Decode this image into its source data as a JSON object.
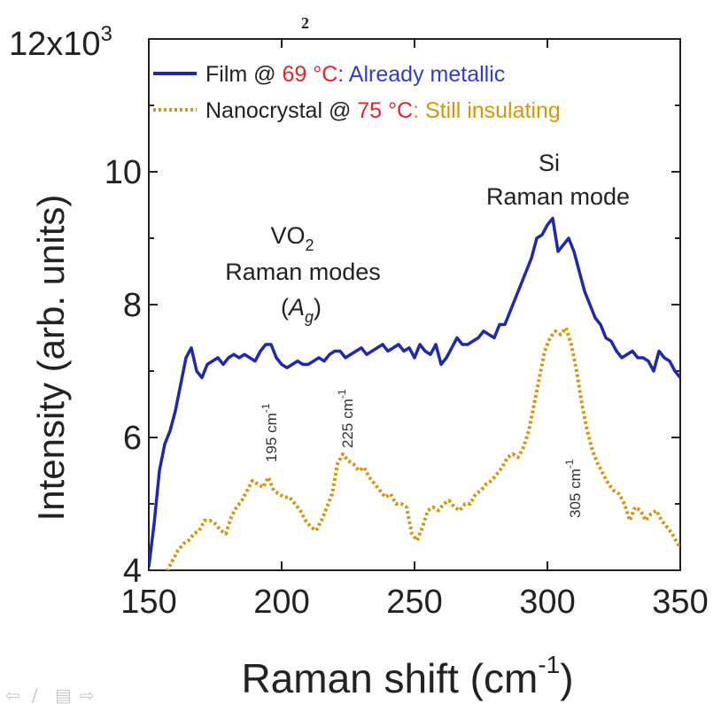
{
  "chart_data": {
    "type": "line",
    "title_fragment": "₂",
    "xlabel": "Raman shift (cm",
    "xlabel_sup": "-1",
    "xlabel_close": ")",
    "ylabel": "Intensity (arb. units)",
    "xlim": [
      150,
      350
    ],
    "ylim": [
      4,
      12
    ],
    "y_multiplier": "12x10",
    "y_multiplier_sup": "3",
    "xticks": [
      "150",
      "200",
      "250",
      "300",
      "350"
    ],
    "yticks": [
      "4",
      "6",
      "8",
      "10"
    ],
    "legend": {
      "placement": "top-left",
      "entries": [
        {
          "prefix": "Film @ ",
          "temp": "69 °C",
          "suffix": ": Already metallic",
          "line_color": "#1f2aa8",
          "temp_color": "#e8242b",
          "suffix_color": "#2f3fc8",
          "style": "solid"
        },
        {
          "prefix": "Nanocrystal @ ",
          "temp": "75 °C",
          "suffix": ": Still insulating",
          "line_color": "#d4960e",
          "temp_color": "#e8242b",
          "suffix_color": "#d4960e",
          "style": "dotted"
        }
      ]
    },
    "annotations": {
      "vo2_line1": "VO",
      "vo2_sub": "2",
      "vo2_line2": "Raman modes",
      "vo2_ag_open": "(",
      "vo2_ag_a": "A",
      "vo2_ag_sub": "g",
      "vo2_ag_close": ")",
      "si_line1": "Si",
      "si_line2": "Raman mode",
      "peak1": "195 cm",
      "peak1_sup": "-1",
      "peak2": "225 cm",
      "peak2_sup": "-1",
      "peak3": "305 cm",
      "peak3_sup": "-1"
    },
    "series": [
      {
        "color": "#1f2aa8",
        "style": "solid",
        "x": [
          150,
          152,
          154,
          156,
          158,
          160,
          162,
          164,
          166,
          168,
          170,
          172,
          174,
          176,
          178,
          180,
          182,
          184,
          186,
          188,
          190,
          192,
          194,
          196,
          198,
          200,
          202,
          204,
          206,
          208,
          210,
          212,
          214,
          216,
          218,
          220,
          222,
          224,
          226,
          228,
          230,
          232,
          234,
          236,
          238,
          240,
          242,
          244,
          246,
          248,
          250,
          252,
          254,
          256,
          258,
          260,
          262,
          264,
          266,
          268,
          270,
          272,
          274,
          276,
          278,
          280,
          282,
          284,
          286,
          288,
          290,
          292,
          294,
          296,
          298,
          300,
          302,
          304,
          306,
          308,
          310,
          312,
          314,
          316,
          318,
          320,
          322,
          324,
          326,
          328,
          330,
          332,
          334,
          336,
          338,
          340,
          342,
          344,
          346,
          348,
          350
        ],
        "values": [
          4.05,
          4.7,
          5.5,
          5.9,
          6.1,
          6.4,
          6.8,
          7.2,
          7.35,
          7.0,
          6.9,
          7.1,
          7.15,
          7.2,
          7.1,
          7.2,
          7.25,
          7.2,
          7.25,
          7.2,
          7.15,
          7.3,
          7.4,
          7.4,
          7.2,
          7.1,
          7.05,
          7.1,
          7.15,
          7.1,
          7.1,
          7.15,
          7.2,
          7.15,
          7.25,
          7.3,
          7.3,
          7.2,
          7.25,
          7.3,
          7.35,
          7.25,
          7.3,
          7.35,
          7.4,
          7.3,
          7.35,
          7.4,
          7.3,
          7.35,
          7.2,
          7.4,
          7.3,
          7.25,
          7.4,
          7.1,
          7.2,
          7.35,
          7.5,
          7.4,
          7.4,
          7.45,
          7.5,
          7.6,
          7.55,
          7.5,
          7.7,
          7.7,
          7.9,
          8.1,
          8.3,
          8.5,
          8.7,
          9.0,
          9.05,
          9.2,
          9.3,
          8.8,
          8.9,
          9.0,
          8.8,
          8.5,
          8.2,
          8.0,
          7.8,
          7.7,
          7.5,
          7.45,
          7.3,
          7.2,
          7.25,
          7.3,
          7.2,
          7.2,
          7.15,
          7.0,
          7.3,
          7.2,
          7.15,
          7.0,
          6.9
        ]
      },
      {
        "color": "#d4960e",
        "style": "dotted",
        "x": [
          155,
          157,
          159,
          161,
          163,
          165,
          167,
          169,
          171,
          173,
          175,
          177,
          179,
          181,
          183,
          185,
          187,
          189,
          191,
          193,
          195,
          197,
          199,
          201,
          203,
          205,
          207,
          209,
          211,
          213,
          215,
          217,
          219,
          221,
          223,
          225,
          227,
          229,
          231,
          233,
          235,
          237,
          239,
          241,
          243,
          245,
          247,
          249,
          251,
          253,
          255,
          257,
          259,
          261,
          263,
          265,
          267,
          269,
          271,
          273,
          275,
          277,
          279,
          281,
          283,
          285,
          287,
          289,
          291,
          293,
          295,
          297,
          299,
          301,
          303,
          305,
          307,
          309,
          311,
          313,
          315,
          317,
          319,
          321,
          323,
          325,
          327,
          329,
          331,
          333,
          335,
          337,
          339,
          341,
          343,
          345,
          347,
          349,
          350
        ],
        "values": [
          3.9,
          4.0,
          4.15,
          4.3,
          4.4,
          4.45,
          4.55,
          4.6,
          4.75,
          4.75,
          4.7,
          4.6,
          4.55,
          4.8,
          4.95,
          5.05,
          5.2,
          5.35,
          5.3,
          5.25,
          5.4,
          5.2,
          5.15,
          5.1,
          5.1,
          5.0,
          4.9,
          4.75,
          4.65,
          4.6,
          4.75,
          4.95,
          5.15,
          5.6,
          5.75,
          5.65,
          5.6,
          5.5,
          5.55,
          5.4,
          5.3,
          5.2,
          5.1,
          5.15,
          5.0,
          5.0,
          4.95,
          4.55,
          4.45,
          4.65,
          4.9,
          4.95,
          4.9,
          5.0,
          5.05,
          4.95,
          4.9,
          5.0,
          5.0,
          5.15,
          5.2,
          5.3,
          5.35,
          5.45,
          5.55,
          5.7,
          5.75,
          5.7,
          5.85,
          6.1,
          6.5,
          6.9,
          7.3,
          7.5,
          7.6,
          7.55,
          7.65,
          7.4,
          7.0,
          6.5,
          6.1,
          5.8,
          5.6,
          5.45,
          5.3,
          5.2,
          5.15,
          5.0,
          4.75,
          4.95,
          4.9,
          4.75,
          4.85,
          4.9,
          4.75,
          4.65,
          4.55,
          4.4,
          4.35
        ]
      }
    ]
  }
}
